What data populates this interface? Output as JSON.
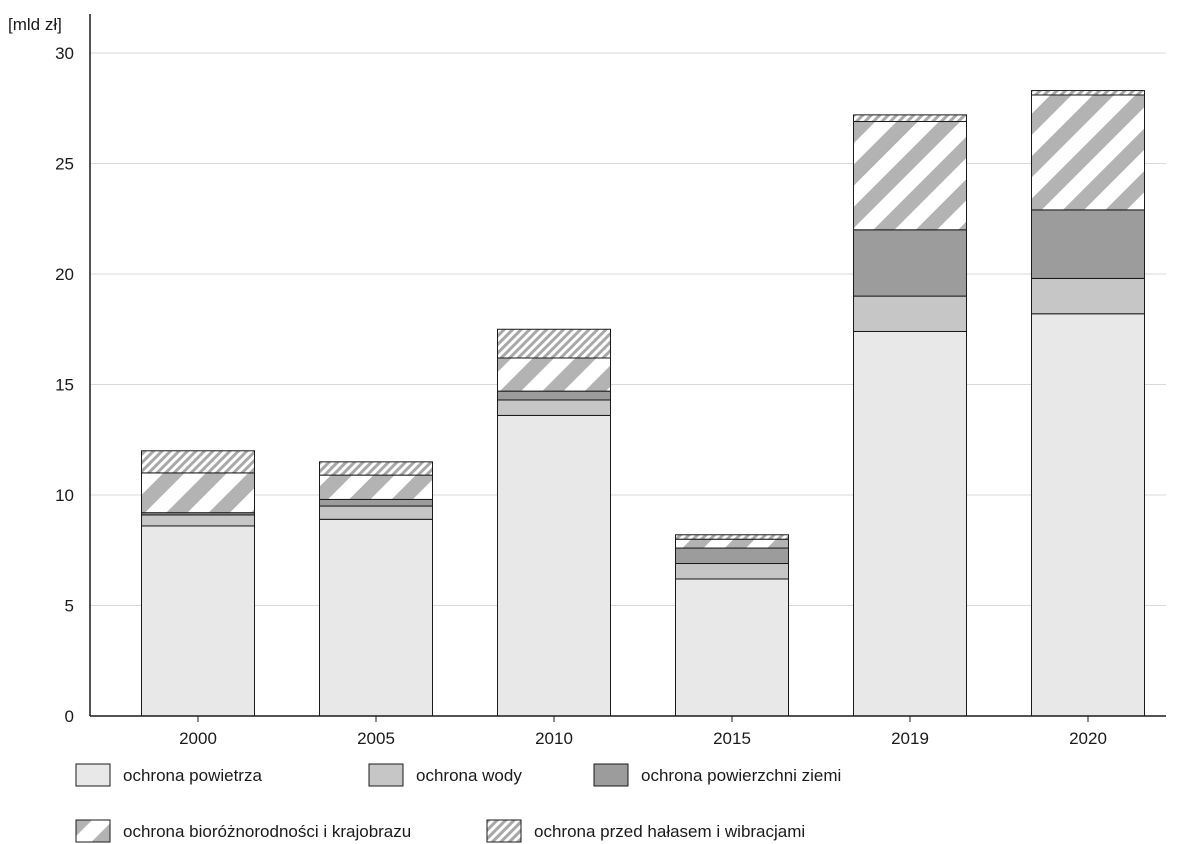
{
  "chart_data": {
    "type": "bar",
    "stacked": true,
    "y_unit_label": "[mld zł]",
    "xlabel": "",
    "ylabel": "",
    "categories": [
      "2000",
      "2005",
      "2010",
      "2015",
      "2019",
      "2020"
    ],
    "ylim": [
      0,
      30
    ],
    "yticks": [
      0,
      5,
      10,
      15,
      20,
      25,
      30
    ],
    "grid": true,
    "legend_placement": "bottom",
    "series": [
      {
        "name": "ochrona powietrza",
        "fill": "light-gray",
        "color": "#e8e8e8",
        "values": [
          8.6,
          8.9,
          13.6,
          6.2,
          17.4,
          18.2
        ]
      },
      {
        "name": "ochrona wody",
        "fill": "medium-gray",
        "color": "#c6c6c6",
        "values": [
          0.5,
          0.6,
          0.7,
          0.7,
          1.6,
          1.6
        ]
      },
      {
        "name": "ochrona powierzchni ziemi",
        "fill": "dark-gray",
        "color": "#9c9c9c",
        "values": [
          0.1,
          0.3,
          0.4,
          0.7,
          3.0,
          3.1
        ]
      },
      {
        "name": "ochrona bioróżnorodności i krajobrazu",
        "fill": "wide-diagonal-stripes",
        "color": "#b3b3b3",
        "values": [
          1.8,
          1.1,
          1.5,
          0.4,
          4.9,
          5.2
        ]
      },
      {
        "name": "ochrona przed hałasem i wibracjami",
        "fill": "fine-diagonal-stripes",
        "color": "#a8a8a8",
        "values": [
          1.0,
          0.6,
          1.3,
          0.2,
          0.3,
          0.2
        ]
      }
    ]
  }
}
